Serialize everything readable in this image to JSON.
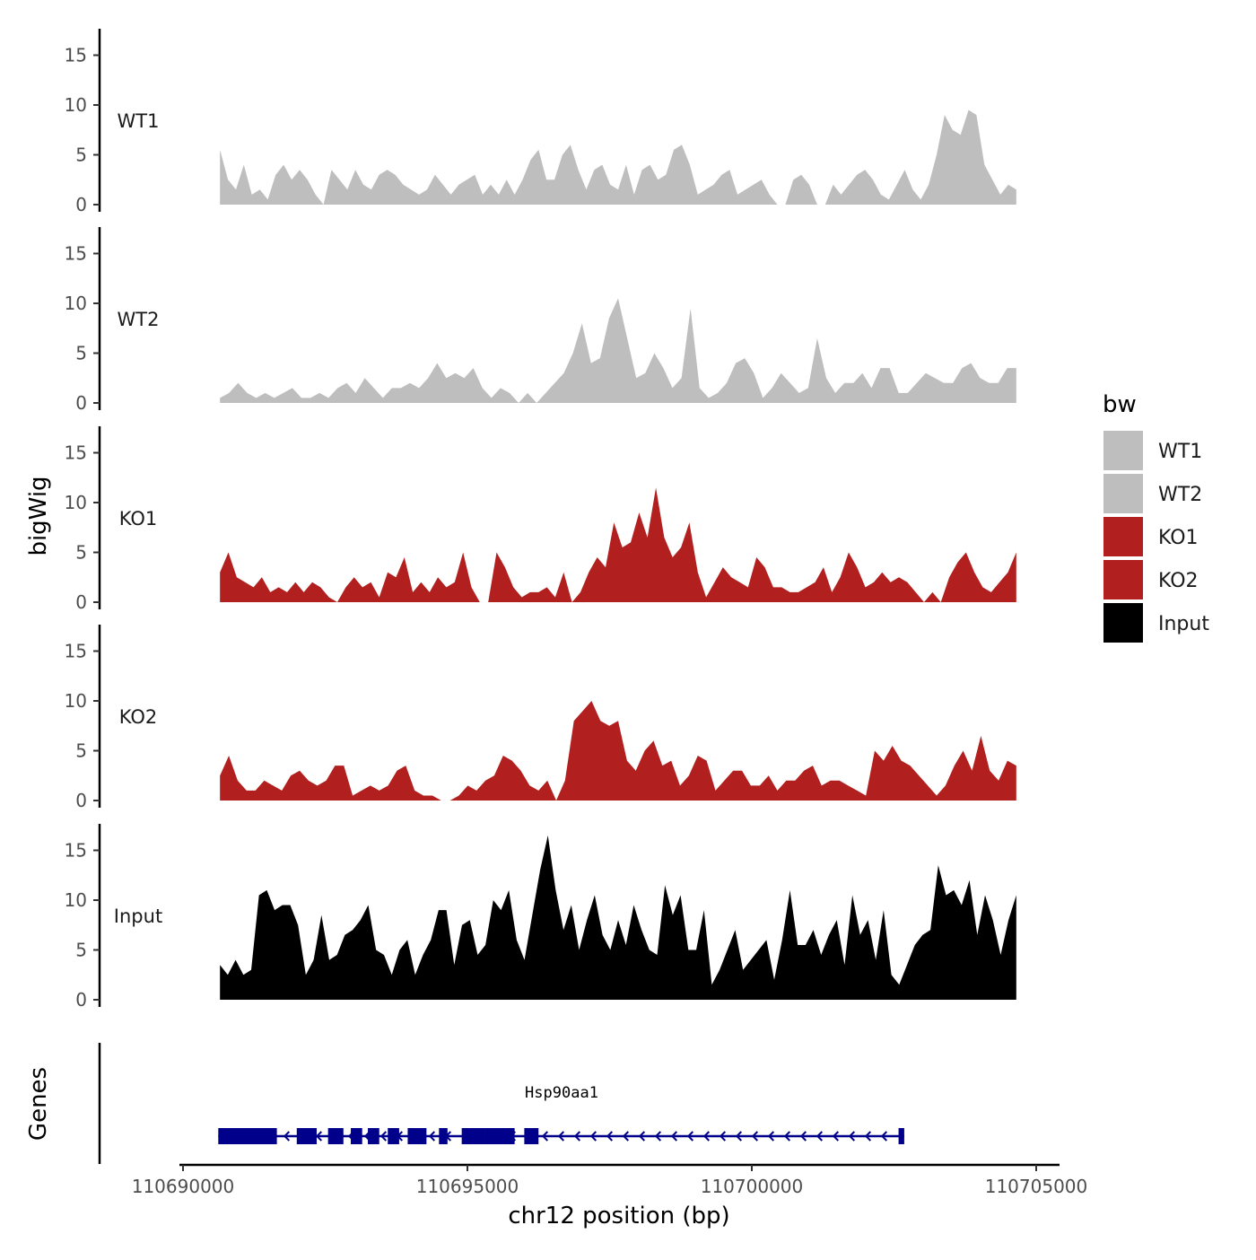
{
  "chart_data": {
    "type": "area",
    "title": "",
    "ylabel": "bigWig",
    "xlabel": "chr12 position (bp)",
    "genes_label": "Genes",
    "ylim": [
      0,
      18
    ],
    "yticks": [
      0,
      5,
      10,
      15
    ],
    "xlim": [
      110689700,
      110705400
    ],
    "xticks": [
      110690000,
      110695000,
      110700000,
      110705000
    ],
    "xtick_labels": [
      "110690000",
      "110695000",
      "110700000",
      "110705000"
    ],
    "data_range": [
      110690650,
      110704650
    ],
    "legend": {
      "title": "bw",
      "position": "right",
      "entries": [
        {
          "label": "WT1",
          "color": "#bebebe"
        },
        {
          "label": "WT2",
          "color": "#bebebe"
        },
        {
          "label": "KO1",
          "color": "#b21f1f"
        },
        {
          "label": "KO2",
          "color": "#b21f1f"
        },
        {
          "label": "Input",
          "color": "#000000"
        }
      ]
    },
    "series": [
      {
        "name": "WT1",
        "color": "#bebebe",
        "values": [
          5.5,
          2.5,
          1.5,
          4.0,
          1.0,
          1.5,
          0.5,
          3.0,
          4.0,
          2.5,
          3.5,
          2.5,
          1.0,
          0,
          3.5,
          2.5,
          1.5,
          3.5,
          2.0,
          1.5,
          3.0,
          3.5,
          3.0,
          2.0,
          1.5,
          1.0,
          1.5,
          3.0,
          2.0,
          1.0,
          2.0,
          2.5,
          3.0,
          1.0,
          2.0,
          1.0,
          2.5,
          1.0,
          2.5,
          4.5,
          5.5,
          2.5,
          2.5,
          5.0,
          6.0,
          3.5,
          1.5,
          3.5,
          4.0,
          2.0,
          1.5,
          4.0,
          1.0,
          3.5,
          4.0,
          2.5,
          3.0,
          5.5,
          6.0,
          4.0,
          1.0,
          1.5,
          2.0,
          3.0,
          3.5,
          1.0,
          1.5,
          2.0,
          2.5,
          1.0,
          0,
          0,
          2.5,
          3.0,
          2.0,
          0,
          0,
          2.0,
          1.0,
          2.0,
          3.0,
          3.5,
          2.5,
          1.0,
          0.5,
          2.0,
          3.5,
          1.5,
          0.5,
          2.0,
          5.0,
          9.0,
          7.5,
          7.0,
          9.5,
          9.0,
          4.0,
          2.5,
          1.0,
          2.0,
          1.5
        ]
      },
      {
        "name": "WT2",
        "color": "#bebebe",
        "values": [
          0.5,
          1.0,
          2.0,
          1.0,
          0.5,
          1.0,
          0.5,
          1.0,
          1.5,
          0.5,
          0.5,
          1.0,
          0.5,
          1.5,
          2.0,
          1.0,
          2.5,
          1.5,
          0.5,
          1.5,
          1.5,
          2.0,
          1.5,
          2.5,
          4.0,
          2.5,
          3.0,
          2.5,
          3.5,
          1.5,
          0.5,
          1.5,
          1.0,
          0,
          1.0,
          0,
          1.0,
          2.0,
          3.0,
          5.0,
          8.0,
          4.0,
          4.5,
          8.5,
          10.5,
          6.5,
          2.5,
          3.0,
          5.0,
          3.5,
          1.5,
          2.5,
          9.5,
          1.5,
          0.5,
          1.0,
          2.0,
          4.0,
          4.5,
          3.0,
          0.5,
          1.5,
          3.0,
          2.0,
          1.0,
          1.5,
          6.5,
          2.5,
          1.0,
          2.0,
          2.0,
          3.0,
          1.5,
          3.5,
          3.5,
          1.0,
          1.0,
          2.0,
          3.0,
          2.5,
          2.0,
          2.0,
          3.5,
          4.0,
          2.5,
          2.0,
          2.0,
          3.5,
          3.5
        ]
      },
      {
        "name": "KO1",
        "color": "#b21f1f",
        "values": [
          3.0,
          5.0,
          2.5,
          2.0,
          1.5,
          2.5,
          1.0,
          1.5,
          1.0,
          2.0,
          1.0,
          2.0,
          1.5,
          0.5,
          0,
          1.5,
          2.5,
          1.5,
          2.0,
          0.5,
          3.0,
          2.5,
          4.5,
          1.0,
          2.0,
          1.0,
          2.5,
          1.5,
          2.0,
          5.0,
          1.5,
          0,
          0,
          5.0,
          3.5,
          1.5,
          0.5,
          1.0,
          1.0,
          1.5,
          0.5,
          3.0,
          0,
          1.0,
          3.0,
          4.5,
          3.5,
          8.0,
          5.5,
          6.0,
          9.0,
          6.5,
          11.5,
          6.5,
          4.5,
          5.5,
          8.0,
          3.0,
          0.5,
          2.0,
          3.5,
          2.5,
          2.0,
          1.5,
          4.5,
          3.5,
          1.5,
          1.5,
          1.0,
          1.0,
          1.5,
          2.0,
          3.5,
          1.0,
          2.5,
          5.0,
          3.5,
          1.5,
          2.0,
          3.0,
          2.0,
          2.5,
          2.0,
          1.0,
          0,
          1.0,
          0,
          2.5,
          4.0,
          5.0,
          3.0,
          1.5,
          1.0,
          2.0,
          3.0,
          5.0
        ]
      },
      {
        "name": "KO2",
        "color": "#b21f1f",
        "values": [
          2.5,
          4.5,
          2.0,
          1.0,
          1.0,
          2.0,
          1.5,
          1.0,
          2.5,
          3.0,
          2.0,
          1.5,
          2.0,
          3.5,
          3.5,
          0.5,
          1.0,
          1.5,
          1.0,
          1.5,
          3.0,
          3.5,
          1.0,
          0.5,
          0.5,
          0,
          0,
          0.5,
          1.5,
          1.0,
          2.0,
          2.5,
          4.5,
          4.0,
          3.0,
          1.5,
          1.0,
          2.0,
          0,
          2.0,
          8.0,
          9.0,
          10.0,
          8.0,
          7.5,
          8.0,
          4.0,
          3.0,
          5.0,
          6.0,
          3.5,
          4.0,
          1.5,
          2.5,
          4.5,
          4.0,
          1.0,
          2.0,
          3.0,
          3.0,
          1.5,
          1.5,
          2.5,
          1.0,
          2.0,
          2.0,
          3.0,
          3.5,
          1.5,
          2.0,
          2.0,
          1.5,
          1.0,
          0.5,
          5.0,
          4.0,
          5.5,
          4.0,
          3.5,
          2.5,
          1.5,
          0.5,
          1.5,
          3.5,
          5.0,
          3.0,
          6.5,
          3.0,
          2.0,
          4.0,
          3.5
        ]
      },
      {
        "name": "Input",
        "color": "#000000",
        "values": [
          3.5,
          2.5,
          4.0,
          2.5,
          3.0,
          10.5,
          11.0,
          9.0,
          9.5,
          9.5,
          7.5,
          2.5,
          4.0,
          8.5,
          4.0,
          4.5,
          6.5,
          7.0,
          8.0,
          9.5,
          5.0,
          4.5,
          2.5,
          5.0,
          6.0,
          2.5,
          4.5,
          6.0,
          9.0,
          9.0,
          3.5,
          7.5,
          8.0,
          4.5,
          5.5,
          10.0,
          9.0,
          11.0,
          6.0,
          4.0,
          8.5,
          13.0,
          16.5,
          11.0,
          7.0,
          9.5,
          5.0,
          8.0,
          10.5,
          6.5,
          5.0,
          8.0,
          5.5,
          9.5,
          7.0,
          5.0,
          4.5,
          11.5,
          8.5,
          10.5,
          5.0,
          5.0,
          9.0,
          1.5,
          3.0,
          5.0,
          7.0,
          3.0,
          4.0,
          5.0,
          6.0,
          2.0,
          6.0,
          11.0,
          5.5,
          5.5,
          7.0,
          4.5,
          6.5,
          8.0,
          3.5,
          10.5,
          6.5,
          8.0,
          4.0,
          9.0,
          2.5,
          1.5,
          3.5,
          5.5,
          6.5,
          7.0,
          13.5,
          10.5,
          11.0,
          9.5,
          12.0,
          6.5,
          10.5,
          8.0,
          4.5,
          8.0,
          10.5
        ]
      }
    ],
    "gene": {
      "name": "Hsp90aa1",
      "strand": "-",
      "start": 110690620,
      "end": 110702680,
      "color": "#00008b",
      "exons": [
        [
          110690620,
          110691650
        ],
        [
          110692000,
          110692350
        ],
        [
          110692550,
          110692820
        ],
        [
          110692950,
          110693150
        ],
        [
          110693250,
          110693450
        ],
        [
          110693600,
          110693800
        ],
        [
          110693950,
          110694280
        ],
        [
          110694500,
          110694650
        ],
        [
          110694900,
          110695300
        ],
        [
          110695300,
          110695830
        ],
        [
          110696000,
          110696250
        ],
        [
          110702580,
          110702680
        ]
      ]
    }
  }
}
